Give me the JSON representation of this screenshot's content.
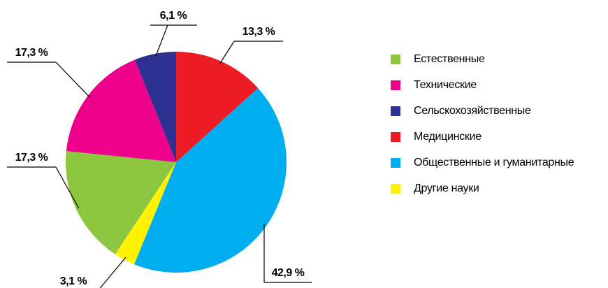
{
  "chart_data": {
    "type": "pie",
    "categories": [
      "Естественные",
      "Технические",
      "Сельскохозяйственные",
      "Медицинские",
      "Общественные и гуманитарные",
      "Другие науки"
    ],
    "values": [
      17.3,
      17.3,
      6.1,
      13.3,
      42.9,
      3.1
    ],
    "value_labels": [
      "17,3 %",
      "17,3 %",
      "6,1 %",
      "13,3 %",
      "42,9 %",
      "3,1 %"
    ],
    "colors": [
      "#8dc63f",
      "#ec008c",
      "#2e3192",
      "#ed1c24",
      "#00aeef",
      "#fff200"
    ],
    "legend": "right"
  }
}
